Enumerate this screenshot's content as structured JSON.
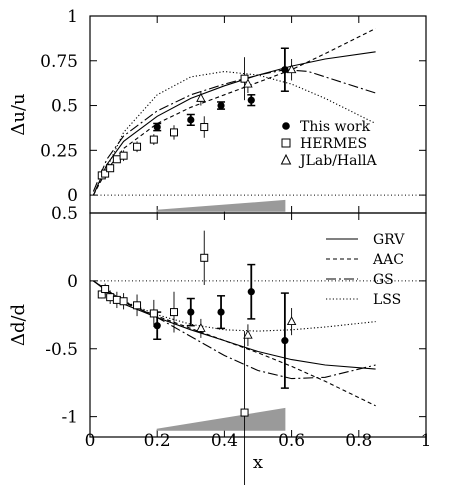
{
  "figure": {
    "xlabel": "x",
    "x_ticks": [
      "0",
      "0.2",
      "0.4",
      "0.6",
      "0.8",
      "1"
    ]
  },
  "chart_data": [
    {
      "type": "scatter",
      "panel": "top",
      "ylabel": "Δu/u",
      "xlim": [
        0,
        1
      ],
      "ylim": [
        -0.1,
        1
      ],
      "y_ticks": [
        "1",
        "0.75",
        "0.5",
        "0.25",
        "0"
      ],
      "y_tick_values": [
        1,
        0.75,
        0.5,
        0.25,
        0
      ],
      "x_ticks_values": [
        0,
        0.2,
        0.4,
        0.6,
        0.8,
        1
      ],
      "zero_line": "dotted",
      "legend": {
        "placement": "lower-right",
        "entries": [
          "This work",
          "HERMES",
          "JLab/HallA"
        ]
      },
      "series": [
        {
          "name": "This work",
          "marker": "filled-circle",
          "x": [
            0.2,
            0.3,
            0.39,
            0.48,
            0.58
          ],
          "y": [
            0.38,
            0.42,
            0.5,
            0.53,
            0.7
          ],
          "err": [
            0.02,
            0.03,
            0.02,
            0.03,
            0.12
          ]
        },
        {
          "name": "HERMES",
          "marker": "open-square",
          "x": [
            0.035,
            0.045,
            0.06,
            0.08,
            0.1,
            0.14,
            0.19,
            0.25,
            0.34,
            0.46
          ],
          "y": [
            0.11,
            0.12,
            0.15,
            0.2,
            0.22,
            0.27,
            0.31,
            0.35,
            0.38,
            0.65
          ],
          "err": [
            0.02,
            0.02,
            0.02,
            0.02,
            0.03,
            0.03,
            0.03,
            0.04,
            0.06,
            0.12
          ]
        },
        {
          "name": "JLab/HallA",
          "marker": "open-triangle",
          "x": [
            0.33,
            0.47,
            0.6
          ],
          "y": [
            0.54,
            0.62,
            0.7
          ],
          "err": [
            0.04,
            0.05,
            0.06
          ]
        }
      ],
      "curves": [
        {
          "name": "GRV",
          "style": "solid",
          "x": [
            0.01,
            0.05,
            0.1,
            0.2,
            0.3,
            0.4,
            0.5,
            0.6,
            0.7,
            0.85
          ],
          "y": [
            0.0,
            0.17,
            0.3,
            0.44,
            0.54,
            0.61,
            0.67,
            0.72,
            0.76,
            0.8
          ]
        },
        {
          "name": "AAC",
          "style": "dashed",
          "x": [
            0.01,
            0.05,
            0.1,
            0.2,
            0.3,
            0.4,
            0.5,
            0.6,
            0.7,
            0.85
          ],
          "y": [
            0.0,
            0.14,
            0.26,
            0.4,
            0.49,
            0.56,
            0.63,
            0.7,
            0.79,
            0.93
          ]
        },
        {
          "name": "GS",
          "style": "dash-dot",
          "x": [
            0.01,
            0.05,
            0.1,
            0.2,
            0.3,
            0.4,
            0.5,
            0.58,
            0.65,
            0.75,
            0.85
          ],
          "y": [
            0.02,
            0.2,
            0.33,
            0.47,
            0.56,
            0.62,
            0.67,
            0.7,
            0.69,
            0.63,
            0.57
          ]
        },
        {
          "name": "LSS",
          "style": "dotted",
          "x": [
            0.01,
            0.05,
            0.1,
            0.2,
            0.3,
            0.4,
            0.5,
            0.6,
            0.7,
            0.85
          ],
          "y": [
            0.0,
            0.15,
            0.35,
            0.56,
            0.66,
            0.69,
            0.67,
            0.62,
            0.54,
            0.4
          ]
        }
      ],
      "systematic_band": {
        "x": [
          0.2,
          0.58
        ],
        "height": [
          0.0,
          0.06
        ]
      }
    },
    {
      "type": "scatter",
      "panel": "bottom",
      "ylabel": "Δd/d",
      "xlim": [
        0,
        1
      ],
      "ylim": [
        -1.15,
        0.5
      ],
      "y_ticks": [
        "0.5",
        "0",
        "-0.5",
        "-1"
      ],
      "y_tick_values": [
        0.5,
        0,
        -0.5,
        -1
      ],
      "x_ticks_values": [
        0,
        0.2,
        0.4,
        0.6,
        0.8,
        1
      ],
      "zero_line": "dotted",
      "legend": {
        "placement": "upper-right",
        "entries": [
          "GRV",
          "AAC",
          "GS",
          "LSS"
        ]
      },
      "series": [
        {
          "name": "This work",
          "marker": "filled-circle",
          "x": [
            0.2,
            0.3,
            0.39,
            0.48,
            0.58
          ],
          "y": [
            -0.33,
            -0.23,
            -0.23,
            -0.08,
            -0.44
          ],
          "err": [
            0.1,
            0.1,
            0.12,
            0.2,
            0.35
          ]
        },
        {
          "name": "HERMES",
          "marker": "open-square",
          "x": [
            0.035,
            0.045,
            0.06,
            0.08,
            0.1,
            0.14,
            0.19,
            0.25,
            0.34,
            0.46
          ],
          "y": [
            -0.1,
            -0.06,
            -0.12,
            -0.14,
            -0.15,
            -0.18,
            -0.24,
            -0.23,
            0.17,
            -0.97
          ],
          "err": [
            0.03,
            0.04,
            0.05,
            0.06,
            0.06,
            0.08,
            0.1,
            0.15,
            0.2,
            0.6
          ]
        },
        {
          "name": "JLab/HallA",
          "marker": "open-triangle",
          "x": [
            0.33,
            0.47,
            0.6
          ],
          "y": [
            -0.35,
            -0.4,
            -0.3
          ],
          "err": [
            0.07,
            0.08,
            0.1
          ]
        }
      ],
      "curves": [
        {
          "name": "GRV",
          "style": "solid",
          "x": [
            0.01,
            0.1,
            0.2,
            0.3,
            0.4,
            0.5,
            0.6,
            0.7,
            0.85
          ],
          "y": [
            0.0,
            -0.17,
            -0.27,
            -0.36,
            -0.44,
            -0.52,
            -0.58,
            -0.62,
            -0.65
          ]
        },
        {
          "name": "AAC",
          "style": "dashed",
          "x": [
            0.01,
            0.1,
            0.2,
            0.3,
            0.4,
            0.5,
            0.6,
            0.7,
            0.85
          ],
          "y": [
            0.0,
            -0.16,
            -0.26,
            -0.35,
            -0.44,
            -0.53,
            -0.63,
            -0.74,
            -0.92
          ]
        },
        {
          "name": "GS",
          "style": "dash-dot",
          "x": [
            0.01,
            0.1,
            0.2,
            0.3,
            0.4,
            0.5,
            0.6,
            0.7,
            0.85
          ],
          "y": [
            0.0,
            -0.15,
            -0.27,
            -0.41,
            -0.55,
            -0.66,
            -0.72,
            -0.71,
            -0.62
          ]
        },
        {
          "name": "LSS",
          "style": "dotted",
          "x": [
            0.01,
            0.1,
            0.2,
            0.3,
            0.4,
            0.5,
            0.6,
            0.7,
            0.85
          ],
          "y": [
            0.0,
            -0.15,
            -0.25,
            -0.32,
            -0.36,
            -0.37,
            -0.36,
            -0.34,
            -0.3
          ]
        }
      ],
      "systematic_band": {
        "x": [
          0.2,
          0.58
        ],
        "height": [
          0.0,
          0.16
        ]
      }
    }
  ]
}
